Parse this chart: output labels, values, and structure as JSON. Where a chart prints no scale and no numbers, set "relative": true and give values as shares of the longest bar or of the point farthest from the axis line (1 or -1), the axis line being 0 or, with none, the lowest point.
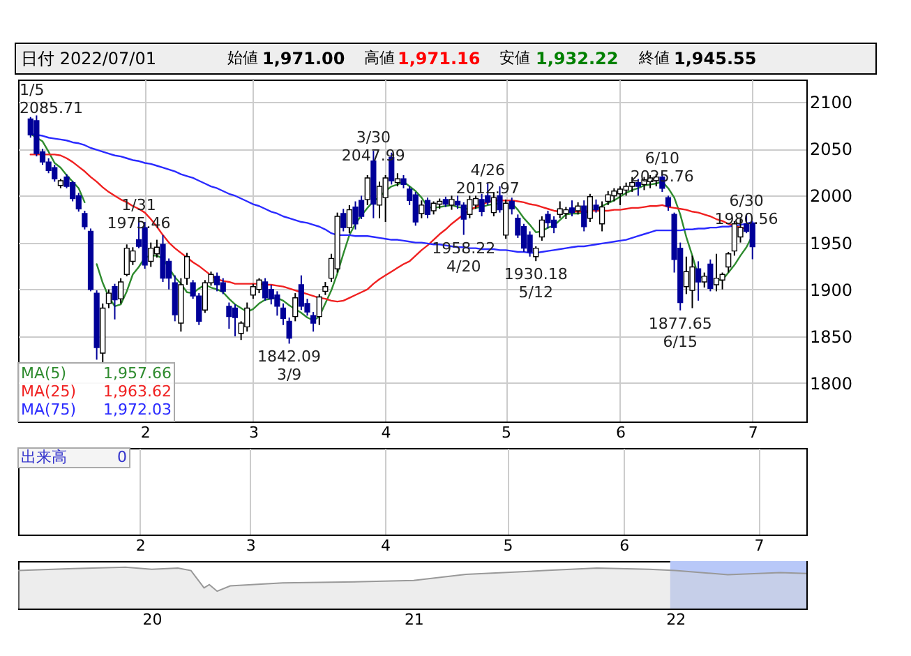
{
  "chart_data": [
    {
      "type": "candlestick",
      "title": "日付 2022/07/01",
      "categories": [
        null,
        null,
        null,
        null,
        null,
        null,
        null,
        null,
        null,
        null,
        null,
        null,
        null,
        null,
        null,
        null,
        null,
        null,
        null,
        "2",
        null,
        null,
        null,
        null,
        null,
        null,
        null,
        null,
        null,
        null,
        null,
        null,
        null,
        null,
        null,
        null,
        null,
        "3",
        null,
        null,
        null,
        null,
        null,
        null,
        null,
        null,
        null,
        null,
        null,
        null,
        null,
        null,
        null,
        null,
        null,
        null,
        null,
        null,
        null,
        "4",
        null,
        null,
        null,
        null,
        null,
        null,
        null,
        null,
        null,
        null,
        null,
        null,
        null,
        null,
        null,
        null,
        null,
        null,
        null,
        "5",
        null,
        null,
        null,
        null,
        null,
        null,
        null,
        null,
        null,
        null,
        null,
        null,
        null,
        null,
        null,
        null,
        null,
        null,
        "6",
        null,
        null,
        null,
        null,
        null,
        null,
        null,
        null,
        null,
        null,
        null,
        null,
        null,
        null,
        null,
        null,
        null,
        null,
        null,
        null,
        null,
        "7"
      ],
      "ohlc": [
        [
          2082,
          2084,
          2062,
          2065
        ],
        [
          2080,
          2085.71,
          2042,
          2045
        ],
        [
          2047,
          2050,
          2033,
          2036
        ],
        [
          2036,
          2040,
          2024,
          2027
        ],
        [
          2030,
          2033,
          2015,
          2018
        ],
        [
          2011,
          2018,
          2008,
          2016
        ],
        [
          2020,
          2023,
          2008,
          2010
        ],
        [
          2014,
          2016,
          1994,
          1997
        ],
        [
          2000,
          2003,
          1983,
          1986
        ],
        [
          1981,
          1984,
          1964,
          1967
        ],
        [
          1962,
          1965,
          1898,
          1900
        ],
        [
          1896,
          1899,
          1825,
          1838
        ],
        [
          1832,
          1885,
          1822,
          1880
        ],
        [
          1885,
          1900,
          1880,
          1896
        ],
        [
          1903,
          1906,
          1868,
          1889
        ],
        [
          1890,
          1912,
          1885,
          1908
        ],
        [
          1916,
          1948,
          1914,
          1944
        ],
        [
          1930,
          1945,
          1926,
          1941
        ],
        [
          1953,
          1975.46,
          1944,
          1946
        ],
        [
          1966,
          1972,
          1922,
          1926
        ],
        [
          1930,
          1950,
          1924,
          1944
        ],
        [
          1938,
          1953,
          1934,
          1945
        ],
        [
          1948,
          1958,
          1908,
          1912
        ],
        [
          1930,
          1933,
          1900,
          1912
        ],
        [
          1907,
          1915,
          1866,
          1873
        ],
        [
          1864,
          1912,
          1855,
          1905
        ],
        [
          1912,
          1939,
          1905,
          1935
        ],
        [
          1907,
          1910,
          1890,
          1893
        ],
        [
          1893,
          1896,
          1862,
          1866
        ],
        [
          1878,
          1910,
          1875,
          1907
        ],
        [
          1907,
          1919,
          1904,
          1916
        ],
        [
          1914,
          1918,
          1898,
          1905
        ],
        [
          1907,
          1912,
          1895,
          1898
        ],
        [
          1882,
          1886,
          1858,
          1871
        ],
        [
          1880,
          1884,
          1850,
          1870
        ],
        [
          1853,
          1866,
          1846,
          1864
        ],
        [
          1860,
          1886,
          1855,
          1880
        ],
        [
          1894,
          1906,
          1890,
          1903
        ],
        [
          1900,
          1912,
          1896,
          1910
        ],
        [
          1908,
          1912,
          1888,
          1891
        ],
        [
          1900,
          1905,
          1884,
          1890
        ],
        [
          1894,
          1898,
          1872,
          1882
        ],
        [
          1880,
          1885,
          1862,
          1869
        ],
        [
          1866,
          1870,
          1842.09,
          1848
        ],
        [
          1871,
          1896,
          1866,
          1891
        ],
        [
          1905,
          1915,
          1878,
          1882
        ],
        [
          1885,
          1890,
          1872,
          1876
        ],
        [
          1872,
          1876,
          1855,
          1864
        ],
        [
          1871,
          1895,
          1862,
          1892
        ],
        [
          1898,
          1908,
          1894,
          1903
        ],
        [
          1912,
          1938,
          1908,
          1933
        ],
        [
          1922,
          1982,
          1918,
          1978
        ],
        [
          1981,
          1986,
          1962,
          1966
        ],
        [
          1966,
          1990,
          1960,
          1985
        ],
        [
          1988,
          1994,
          1964,
          1970
        ],
        [
          1995,
          2000,
          1975,
          1978
        ],
        [
          1996,
          2022,
          1990,
          2019
        ],
        [
          2037,
          2047.99,
          1976,
          1991
        ],
        [
          1990,
          2015,
          1976,
          2010
        ],
        [
          1998,
          2022,
          1972,
          2019
        ],
        [
          2041,
          2046,
          2012,
          2016
        ],
        [
          2014,
          2024,
          2010,
          2018
        ],
        [
          2018,
          2022,
          2008,
          2012
        ],
        [
          2007,
          2010,
          1990,
          1995
        ],
        [
          2001,
          2004,
          1968,
          1972
        ],
        [
          1981,
          1995,
          1976,
          1990
        ],
        [
          1995,
          1998,
          1976,
          1980
        ],
        [
          1984,
          1994,
          1980,
          1992
        ],
        [
          1991,
          1997,
          1986,
          1994
        ],
        [
          1996,
          1999,
          1988,
          1991
        ],
        [
          1990,
          2000,
          1985,
          1996
        ],
        [
          1994,
          2000,
          1986,
          1990
        ],
        [
          1990,
          1993,
          1958.22,
          1975
        ],
        [
          1980,
          2000,
          1976,
          1996
        ],
        [
          1990,
          2000,
          1986,
          1997
        ],
        [
          1996,
          2002,
          1978,
          1983
        ],
        [
          2000,
          2012.97,
          1990,
          1993
        ],
        [
          1982,
          2004,
          1978,
          1998
        ],
        [
          2000,
          2010,
          1982,
          1985
        ],
        [
          1958,
          1996,
          1954,
          1992
        ],
        [
          1994,
          1998,
          1980,
          1986
        ],
        [
          1976,
          1980,
          1955,
          1958
        ],
        [
          1967,
          1970,
          1940,
          1944
        ],
        [
          1958,
          1962,
          1935,
          1940
        ],
        [
          1935,
          1946,
          1930.18,
          1944
        ],
        [
          1956,
          1978,
          1952,
          1974
        ],
        [
          1980,
          1984,
          1965,
          1971
        ],
        [
          1974,
          1978,
          1960,
          1966
        ],
        [
          1980,
          1994,
          1976,
          1986
        ],
        [
          1981,
          1988,
          1975,
          1985
        ],
        [
          1987,
          1995,
          1978,
          1982
        ],
        [
          1984,
          1993,
          1980,
          1989
        ],
        [
          1989,
          1995,
          1962,
          1967
        ],
        [
          1976,
          2002,
          1972,
          1999
        ],
        [
          1990,
          1996,
          1982,
          1985
        ],
        [
          1970,
          1994,
          1962,
          1988
        ],
        [
          1994,
          2005,
          1990,
          2001
        ],
        [
          2000,
          2008,
          1994,
          2005
        ],
        [
          2002,
          2010,
          1990,
          2007
        ],
        [
          2006,
          2014,
          2000,
          2010
        ],
        [
          2010,
          2020,
          2004,
          2014
        ],
        [
          2014,
          2018,
          2000,
          2010
        ],
        [
          2012,
          2020,
          2006,
          2017
        ],
        [
          2015,
          2022,
          2008,
          2019
        ],
        [
          2016,
          2023,
          2010,
          2020
        ],
        [
          2020,
          2025.76,
          2004,
          2008
        ],
        [
          1998,
          2000,
          1984,
          1989
        ],
        [
          1980,
          1982,
          1918,
          1932
        ],
        [
          1944,
          1950,
          1877.65,
          1886
        ],
        [
          1903,
          1935,
          1895,
          1919
        ],
        [
          1899,
          1936,
          1880,
          1924
        ],
        [
          1922,
          1930,
          1888,
          1908
        ],
        [
          1908,
          1918,
          1902,
          1914
        ],
        [
          1927,
          1932,
          1898,
          1901
        ],
        [
          1905,
          1938,
          1898,
          1912
        ],
        [
          1910,
          1918,
          1900,
          1916
        ],
        [
          1924,
          1940,
          1918,
          1938
        ],
        [
          1941,
          1973,
          1936,
          1970
        ],
        [
          1956,
          1975,
          1950,
          1966
        ],
        [
          1970,
          1980.56,
          1960,
          1962
        ],
        [
          1971.0,
          1971.16,
          1932.22,
          1945.55
        ]
      ],
      "series": [
        {
          "name": "MA(5)",
          "type": "line",
          "color": "#2e8b2e",
          "values": [
            2066,
            2062,
            2058,
            2047,
            2035,
            2030,
            2022,
            2015,
            2008,
            1993,
            null,
            1927,
            1907,
            1892,
            1882,
            1884,
            1898,
            1916,
            1924,
            1934,
            1936,
            1936,
            1933,
            1923,
            1913,
            1906,
            1897,
            1896,
            1901,
            1905,
            1902,
            1900,
            1897,
            1890,
            1884,
            1880,
            1876,
            1879,
            1885,
            1889,
            1890,
            1891,
            1888,
            1883,
            1879,
            1875,
            1870,
            1867,
            1871,
            1885,
            1899,
            1917,
            1938,
            1958,
            1970,
            1979,
            1987,
            1994,
            1999,
            2005,
            2010,
            2012,
            2015,
            2010,
            2005,
            1998,
            1988,
            1987,
            1988,
            1989,
            1990,
            1988,
            1987,
            1985,
            1987,
            1988,
            1990,
            1991,
            1992,
            null,
            1992,
            1985,
            1976,
            1969,
            1961,
            1962,
            1966,
            1968,
            1974,
            1980,
            1981,
            1981,
            1982,
            1983,
            1986,
            1989,
            1992,
            1995,
            1999,
            2003,
            2006,
            2008,
            2011,
            2012,
            2013,
            2015,
            2008,
            1998,
            1980,
            1956,
            1936,
            1914,
            1912,
            null,
            1910,
            1910,
            1918,
            1926,
            1936,
            1945,
            1957.66
          ]
        },
        {
          "name": "MA(25)",
          "type": "line",
          "color": "#f02020",
          "values": [
            2044,
            2044,
            2044,
            2044,
            2044,
            2043,
            2040,
            2036,
            2031,
            2026,
            2020,
            2015,
            2009,
            2004,
            2000,
            1996,
            1993,
            1989,
            1986,
            1982,
            1975,
            1967,
            1958,
            1950,
            1944,
            1939,
            1934,
            1929,
            1925,
            1920,
            1915,
            1911,
            1909,
            1908,
            1906,
            1906,
            1906,
            1906,
            1906,
            1905,
            1905,
            1904,
            1903,
            1901,
            1899,
            1897,
            1895,
            1893,
            1891,
            1890,
            1888,
            1887,
            1888,
            1891,
            1894,
            1897,
            1900,
            1906,
            1911,
            1915,
            1919,
            1923,
            1927,
            1930,
            1936,
            1942,
            1947,
            1953,
            1959,
            1964,
            1970,
            1975,
            1980,
            1985,
            1988,
            1991,
            1993,
            1995,
            1995,
            1995,
            1995,
            1994,
            1993,
            1991,
            1990,
            1988,
            1986,
            1984,
            1983,
            null,
            1983,
            1983,
            1983,
            1984,
            1984,
            1984,
            1984,
            1985,
            1985,
            1986,
            1987,
            1987,
            1988,
            1989,
            1989,
            1990,
            1988,
            1987,
            1986,
            1985,
            1983,
            1982,
            1980,
            1978,
            1975,
            1973,
            1970,
            1968,
            1966,
            1965,
            null
          ]
        },
        {
          "name": "MA(75)",
          "type": "line",
          "color": "#2a2aff",
          "values": [
            2066,
            2065,
            2064,
            2062,
            2061,
            2060,
            2059,
            2057,
            2056,
            2054,
            2051,
            2049,
            2047,
            2045,
            2043,
            2042,
            2040,
            2038,
            2037,
            2035,
            2034,
            2032,
            2030,
            2028,
            2026,
            2023,
            2021,
            2019,
            2016,
            2013,
            2010,
            2008,
            2005,
            2002,
            2000,
            1997,
            1994,
            1991,
            1989,
            1986,
            1983,
            1981,
            1978,
            1976,
            1974,
            1972,
            1971,
            1969,
            1967,
            1964,
            1960,
            1958,
            1958,
            1958,
            1957,
            1957,
            1957,
            1956,
            1955,
            1954,
            1953,
            1953,
            1952,
            1951,
            1950,
            1950,
            1949,
            1948,
            1948,
            1947,
            1946,
            1945,
            1945,
            1944,
            1944,
            1943,
            1943,
            1943,
            1942,
            1942,
            1941,
            1940,
            1940,
            1939,
            1939,
            1940,
            1941,
            1942,
            1943,
            1944,
            1945,
            1946,
            1946,
            1947,
            1948,
            1949,
            1950,
            1951,
            1952,
            1953,
            1955,
            1957,
            1959,
            1961,
            1963,
            1963,
            1963,
            1963,
            1963,
            1964,
            1964,
            1965,
            1965,
            1966,
            1966,
            1967,
            1967,
            1968,
            1969,
            1970,
            1972.03
          ]
        }
      ],
      "ylim": [
        1759,
        2124
      ],
      "yticks": [
        1800,
        1850,
        1900,
        1950,
        2000,
        2050,
        2100
      ],
      "grid": true,
      "legend": "bottom left",
      "annotations": [
        "始値",
        "1,971.00",
        "高値",
        "1,971.16",
        "安値",
        "1,932.22",
        "終値",
        "1,945.55",
        "1,957.66",
        "1,963.62",
        "1,972.03",
        "1/5\n2085.71",
        {
          "text": "1/31\n1975.46",
          "y": 1975.46
        },
        {
          "text": "1842.09\n3/9",
          "y": 1842.09
        },
        {
          "text": "3/30\n2047.99",
          "y": 2047.99
        },
        {
          "text": "1958.22\n4/20",
          "y": 1958.22
        },
        {
          "text": "4/26\n2012.97",
          "y": 2012.97
        },
        {
          "text": "1930.18\n5/12",
          "y": 1930.18
        },
        {
          "text": "6/10\n2025.76",
          "y": 2025.76
        },
        {
          "text": "1877.65\n6/15",
          "y": 1877.65
        },
        {
          "text": "6/30\n1980.56",
          "y": 1980.56
        }
      ]
    },
    {
      "type": "other",
      "annotations": [
        "出来高",
        "0"
      ],
      "categories": [
        null,
        null,
        null,
        null,
        null,
        null,
        null,
        null,
        null,
        null,
        null,
        null,
        null,
        null,
        null,
        null,
        null,
        null,
        null,
        "2",
        null,
        null,
        null,
        null,
        null,
        null,
        null,
        null,
        null,
        null,
        null,
        null,
        null,
        null,
        null,
        null,
        null,
        "3",
        null,
        null,
        null,
        null,
        null,
        null,
        null,
        null,
        null,
        null,
        null,
        null,
        null,
        null,
        null,
        null,
        null,
        null,
        null,
        null,
        null,
        "4",
        null,
        null,
        null,
        null,
        null,
        null,
        null,
        null,
        null,
        null,
        null,
        null,
        null,
        null,
        null,
        null,
        null,
        null,
        null,
        "5",
        null,
        null,
        null,
        null,
        null,
        null,
        null,
        null,
        null,
        null,
        null,
        null,
        null,
        null,
        null,
        null,
        null,
        null,
        "6",
        null,
        null,
        null,
        null,
        null,
        null,
        null,
        null,
        null,
        null,
        null,
        null,
        null,
        null,
        null,
        null,
        null,
        null,
        null,
        null,
        null,
        "7"
      ]
    },
    {
      "type": "area",
      "relative": true,
      "color": "#999999",
      "x": [
        2019.49,
        2019.7,
        2019.9,
        2020.0,
        2020.1,
        2020.15,
        2020.2,
        2020.22,
        2020.25,
        2020.3,
        2020.5,
        2020.8,
        2021.0,
        2021.2,
        2021.5,
        2021.7,
        2021.9,
        2022.0,
        2022.2,
        2022.4,
        2022.5
      ],
      "values": [
        0.92,
        0.97,
        1,
        0.95,
        0.98,
        0.92,
        0.5,
        0.58,
        0.42,
        0.55,
        0.62,
        0.65,
        0.68,
        0.83,
        0.92,
        0.98,
        0.95,
        0.92,
        0.82,
        0.87,
        0.85
      ],
      "xlim": [
        2019.49,
        2022.5
      ],
      "xticks": [
        {
          "value": 2020,
          "label": "20"
        },
        {
          "value": 2021,
          "label": "21"
        },
        {
          "value": 2022,
          "label": "22"
        }
      ],
      "bands": [
        {
          "axis": "x",
          "from": 2021.98,
          "to": 2022.5,
          "color": "#b8c8f8"
        }
      ]
    }
  ]
}
